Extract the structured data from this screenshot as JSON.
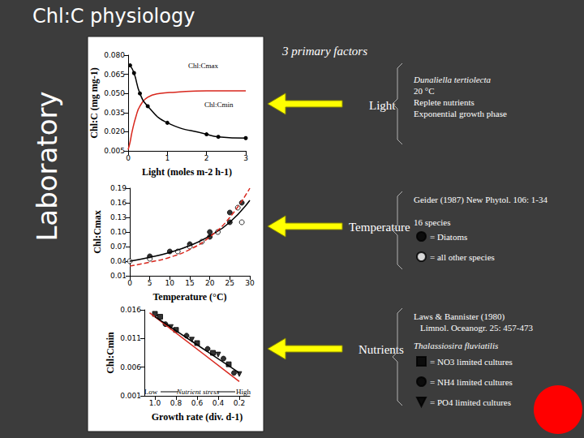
{
  "title": "Chl:C physiology",
  "side_label": "Laboratory",
  "heading": "3 primary factors",
  "chart_data": [
    {
      "type": "line",
      "factor": "Light",
      "notes": [
        "Dunaliella tertiolecta",
        "20 °C",
        "Replete nutrients",
        "Exponential growth phase"
      ],
      "annotations": [
        "Chl:Cmax",
        "Chl:Cmin"
      ],
      "x_label": "Light (moles m-2 h-1)",
      "y_label": "Chl:C (mg mg-1)",
      "xlim": [
        0,
        3
      ],
      "xticks": [
        0,
        1,
        2,
        3
      ],
      "ylim": [
        0.005,
        0.08
      ],
      "yticks": [
        0.005,
        {
          "value": 0.02,
          "label": "0.020"
        },
        0.035,
        {
          "value": 0.05,
          "label": "0.050"
        },
        0.065,
        {
          "value": 0.08,
          "label": "0.080"
        }
      ],
      "grid": false,
      "series": [
        {
          "type": "line",
          "color": "#d8261c",
          "marker": "none",
          "line_style": "solid",
          "x": [
            0,
            0.05,
            0.1,
            0.2,
            0.3,
            0.5,
            0.8,
            1.2,
            2,
            3
          ],
          "values": [
            0.006,
            0.012,
            0.02,
            0.032,
            0.04,
            0.047,
            0.05,
            0.051,
            0.052,
            0.052
          ]
        },
        {
          "type": "line",
          "color": "#000000",
          "marker": "circle",
          "line_style": "solid",
          "x": [
            0.05,
            0.15,
            0.3,
            0.5,
            1.0,
            2.0,
            2.3,
            3.0
          ],
          "values": [
            0.072,
            0.066,
            0.05,
            0.04,
            0.027,
            0.018,
            0.016,
            0.015
          ]
        }
      ]
    },
    {
      "type": "scatter",
      "factor": "Temperature",
      "notes": [
        "Geider (1987) New Phytol. 106: 1-34",
        "16 species"
      ],
      "x_label": "Temperature (°C)",
      "y_label": "Chl:Cmax",
      "xlim": [
        0,
        30
      ],
      "xticks": [
        0,
        5,
        10,
        15,
        20,
        25,
        30
      ],
      "ylim": [
        0.01,
        0.19
      ],
      "yticks": [
        0.01,
        0.04,
        0.07,
        {
          "value": 0.1,
          "label": "0.10"
        },
        0.13,
        0.16,
        0.19
      ],
      "grid": false,
      "legend": "right",
      "series": [
        {
          "name": "= Diatoms",
          "type": "scatter",
          "color": "#000000",
          "marker": "circle",
          "x": [
            5,
            10,
            15,
            20,
            20,
            25,
            25,
            28
          ],
          "values": [
            0.05,
            0.06,
            0.075,
            0.1,
            0.09,
            0.12,
            0.14,
            0.16
          ]
        },
        {
          "name": "= all other species",
          "type": "scatter",
          "color": "#ffffff",
          "marker": "circle",
          "x": [
            0,
            5,
            12,
            15,
            18,
            22,
            27,
            28
          ],
          "values": [
            0.04,
            0.045,
            0.06,
            0.07,
            0.08,
            0.1,
            0.15,
            0.12
          ]
        },
        {
          "type": "line",
          "color": "#000000",
          "marker": "none",
          "line_style": "solid",
          "x": [
            0,
            5,
            10,
            15,
            20,
            25,
            30
          ],
          "values": [
            0.04,
            0.048,
            0.058,
            0.072,
            0.092,
            0.12,
            0.165
          ]
        },
        {
          "type": "line",
          "color": "#d8261c",
          "marker": "none",
          "line_style": "dashed",
          "x": [
            0,
            5,
            10,
            15,
            20,
            25,
            30
          ],
          "values": [
            0.03,
            0.038,
            0.048,
            0.064,
            0.09,
            0.13,
            0.19
          ]
        }
      ]
    },
    {
      "type": "scatter",
      "factor": "Nutrients",
      "notes": [
        "Laws & Bannister (1980)",
        "Limnol. Oceanogr. 25: 457-473",
        "Thalassiosira fluviatilis"
      ],
      "annotations": [
        "Low",
        "Nutrient stress",
        "High"
      ],
      "x_label": "Growth rate (div. d-1)",
      "y_label": "Chl:Cmin",
      "xlim": [
        1.1,
        0.1
      ],
      "xticks": [
        {
          "value": 1,
          "label": "1.0"
        },
        0.8,
        0.6,
        0.4,
        0.2
      ],
      "ylim": [
        0.001,
        0.016
      ],
      "yticks": [
        0.001,
        0.006,
        0.011,
        0.016
      ],
      "grid": false,
      "legend": "right",
      "series": [
        {
          "name": "= NO3 limited cultures",
          "type": "scatter",
          "color": "#000000",
          "marker": "square",
          "x": [
            1.0,
            0.95,
            0.8,
            0.6,
            0.45,
            0.3
          ],
          "values": [
            0.0153,
            0.0148,
            0.0125,
            0.0102,
            0.0085,
            0.0065
          ]
        },
        {
          "name": "= NH4 limited cultures",
          "type": "scatter",
          "color": "#000000",
          "marker": "circle",
          "x": [
            0.9,
            0.7,
            0.5,
            0.35,
            0.25
          ],
          "values": [
            0.0135,
            0.0115,
            0.0092,
            0.0075,
            0.005
          ]
        },
        {
          "name": "= PO4 limited cultures",
          "type": "scatter",
          "color": "#000000",
          "marker": "triangle_down",
          "x": [
            0.85,
            0.65,
            0.4,
            0.2
          ],
          "values": [
            0.013,
            0.0108,
            0.0082,
            0.0048
          ]
        },
        {
          "type": "line",
          "color": "#d8261c",
          "marker": "none",
          "line_style": "solid",
          "x": [
            1.05,
            0.2
          ],
          "values": [
            0.0155,
            0.0035
          ]
        },
        {
          "type": "line",
          "color": "#000000",
          "marker": "none",
          "line_style": "solid",
          "x": [
            1.0,
            0.2
          ],
          "values": [
            0.0148,
            0.005
          ]
        }
      ]
    }
  ]
}
